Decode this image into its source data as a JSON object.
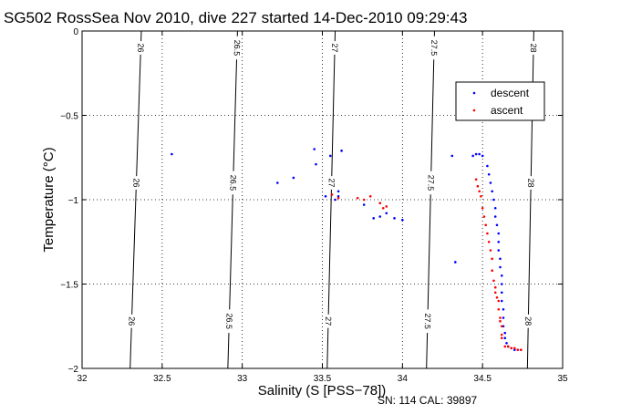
{
  "chart_data": {
    "type": "scatter",
    "title": "SG502 RossSea Nov 2010, dive 227 started 14-Dec-2010 09:29:43",
    "xlabel": "Salinity (S [PSS−78])",
    "ylabel": "Temperature (°C)",
    "xlim": [
      32,
      35
    ],
    "ylim": [
      -2,
      0
    ],
    "x_ticks": [
      "32",
      "32.5",
      "33",
      "33.5",
      "34",
      "34.5",
      "35"
    ],
    "y_ticks": [
      "0",
      "−0.5",
      "−1",
      "−1.5",
      "−2"
    ],
    "grid": "dotted",
    "legend_position": "top-right",
    "series": [
      {
        "name": "descent",
        "color": "#0000ff",
        "x": [
          32.56,
          33.22,
          33.32,
          33.45,
          33.46,
          33.52,
          33.55,
          33.6,
          33.62,
          33.6,
          33.58,
          33.76,
          33.82,
          33.86,
          33.9,
          33.95,
          34.0,
          34.31,
          34.33,
          34.44,
          34.46,
          34.48,
          34.5,
          34.53,
          34.54,
          34.55,
          34.56,
          34.57,
          34.58,
          34.58,
          34.59,
          34.6,
          34.6,
          34.6,
          34.61,
          34.61,
          34.62,
          34.62,
          34.62,
          34.62,
          34.63,
          34.63,
          34.63,
          34.64,
          34.64,
          34.65,
          34.66,
          34.68,
          34.7,
          34.72,
          34.74
        ],
        "y": [
          -0.73,
          -0.9,
          -0.87,
          -0.7,
          -0.79,
          -0.98,
          -0.74,
          -0.98,
          -0.71,
          -0.95,
          -1.0,
          -1.03,
          -1.11,
          -1.1,
          -1.08,
          -1.11,
          -1.12,
          -0.74,
          -1.37,
          -0.74,
          -0.73,
          -0.73,
          -0.74,
          -0.8,
          -0.85,
          -0.9,
          -0.95,
          -1.0,
          -1.05,
          -1.1,
          -1.15,
          -1.2,
          -1.25,
          -1.3,
          -1.35,
          -1.4,
          -1.45,
          -1.5,
          -1.55,
          -1.6,
          -1.65,
          -1.7,
          -1.75,
          -1.79,
          -1.82,
          -1.85,
          -1.87,
          -1.88,
          -1.89,
          -1.89,
          -1.89
        ]
      },
      {
        "name": "ascent",
        "color": "#ff0000",
        "x": [
          33.56,
          33.6,
          33.72,
          33.76,
          33.8,
          33.86,
          33.88,
          33.9,
          34.46,
          34.47,
          34.48,
          34.49,
          34.5,
          34.51,
          34.52,
          34.53,
          34.54,
          34.55,
          34.56,
          34.56,
          34.57,
          34.58,
          34.58,
          34.59,
          34.6,
          34.6,
          34.61,
          34.61,
          34.62,
          34.62,
          34.62,
          34.64,
          34.66,
          34.68,
          34.7,
          34.72,
          34.74
        ],
        "y": [
          -0.97,
          -0.99,
          -0.99,
          -1.0,
          -0.98,
          -1.02,
          -1.05,
          -1.04,
          -0.88,
          -0.92,
          -0.95,
          -0.98,
          -1.05,
          -1.1,
          -1.15,
          -1.2,
          -1.25,
          -1.3,
          -1.35,
          -1.42,
          -1.48,
          -1.52,
          -1.55,
          -1.58,
          -1.6,
          -1.65,
          -1.7,
          -1.72,
          -1.75,
          -1.8,
          -1.82,
          -1.87,
          -1.87,
          -1.88,
          -1.88,
          -1.89,
          -1.89
        ]
      }
    ],
    "contours": [
      {
        "label": "26",
        "x_top": 32.37,
        "x_bottom": 32.3,
        "labels_at": [
          0.05,
          0.45,
          0.86
        ]
      },
      {
        "label": "26.5",
        "x_top": 32.97,
        "x_bottom": 32.91,
        "labels_at": [
          0.05,
          0.45,
          0.86
        ]
      },
      {
        "label": "27",
        "x_top": 33.58,
        "x_bottom": 33.53,
        "labels_at": [
          0.05,
          0.45,
          0.86
        ]
      },
      {
        "label": "27.5",
        "x_top": 34.2,
        "x_bottom": 34.15,
        "labels_at": [
          0.05,
          0.45,
          0.86
        ]
      },
      {
        "label": "28",
        "x_top": 34.82,
        "x_bottom": 34.78,
        "labels_at": [
          0.05,
          0.45,
          0.86
        ]
      }
    ]
  },
  "footer": {
    "serial": "SN: 114  CAL: 39897"
  }
}
